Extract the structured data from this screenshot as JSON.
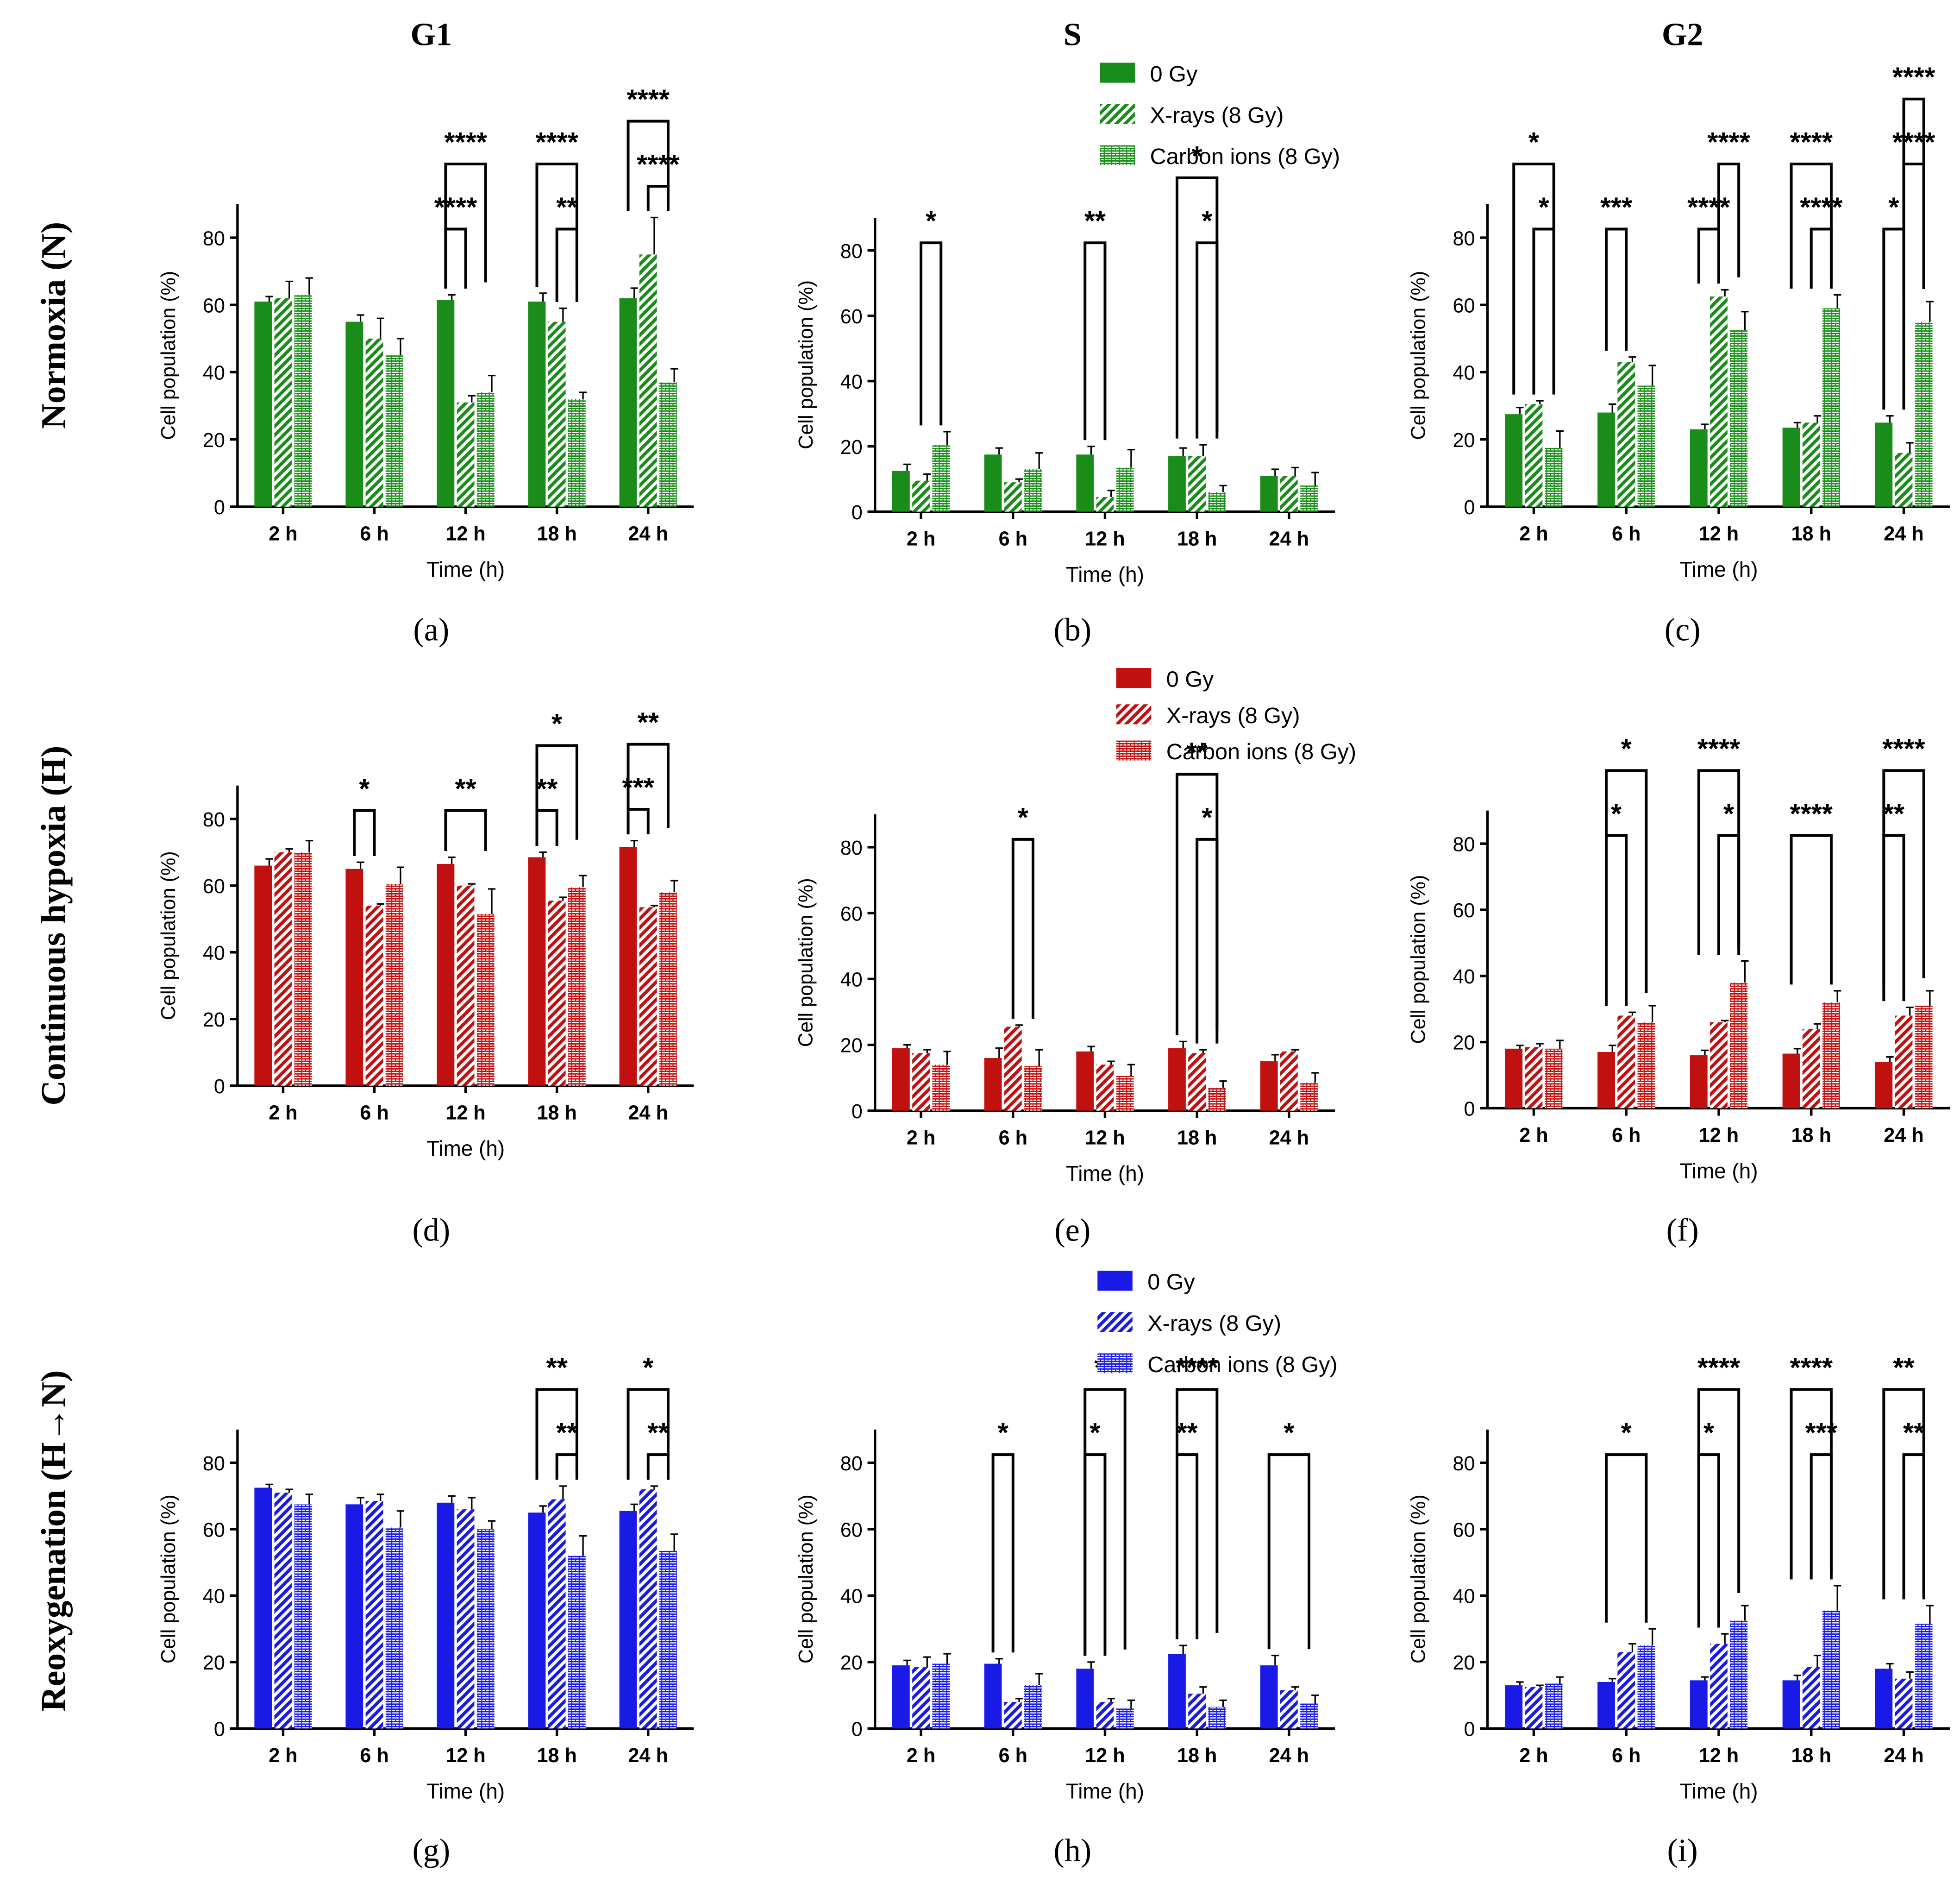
{
  "row_labels": [
    "Normoxia (N)",
    "Continuous hypoxia (H)",
    "Reoxygenation (H→N)"
  ],
  "column_titles": [
    "G1",
    "S",
    "G2"
  ],
  "panel_letters": [
    "(a)",
    "(b)",
    "(c)",
    "(d)",
    "(e)",
    "(f)",
    "(g)",
    "(h)",
    "(i)"
  ],
  "xlabel": "Time (h)",
  "ylabel": "Cell population (%)",
  "categories": [
    "2 h",
    "6 h",
    "12 h",
    "18 h",
    "24 h"
  ],
  "series_names": [
    "0 Gy",
    "X-rays (8 Gy)",
    "Carbon ions (8 Gy)"
  ],
  "colors": {
    "N": "#1a8c1a",
    "H": "#c01010",
    "R": "#1a1ae6"
  },
  "chart_data": [
    {
      "id": "a",
      "type": "bar",
      "row": "N",
      "phase": "G1",
      "title": "G1",
      "ylim": [
        0,
        90
      ],
      "yticks": [
        0,
        20,
        40,
        60,
        80
      ],
      "series": [
        {
          "name": "0 Gy",
          "values": [
            61,
            55,
            61.5,
            61,
            62
          ],
          "err": [
            1.5,
            2,
            1.5,
            2.5,
            3
          ]
        },
        {
          "name": "X-rays (8 Gy)",
          "values": [
            62,
            50,
            31,
            55,
            75
          ],
          "err": [
            5,
            6,
            2,
            4,
            11
          ]
        },
        {
          "name": "Carbon ions (8 Gy)",
          "values": [
            63,
            45,
            34,
            32,
            37
          ],
          "err": [
            5,
            5,
            5,
            2,
            4
          ]
        }
      ],
      "significance": [
        {
          "cat": 2,
          "a": 0,
          "b": 2,
          "label": "****",
          "level": 2
        },
        {
          "cat": 2,
          "a": 0,
          "b": 1,
          "label": "****",
          "level": 1
        },
        {
          "cat": 3,
          "a": 0,
          "b": 2,
          "label": "****",
          "level": 2
        },
        {
          "cat": 3,
          "a": 1,
          "b": 2,
          "label": "**",
          "level": 1
        },
        {
          "cat": 4,
          "a": 0,
          "b": 2,
          "label": "****",
          "level": 2
        },
        {
          "cat": 4,
          "a": 1,
          "b": 2,
          "label": "****",
          "level": 1
        }
      ]
    },
    {
      "id": "b",
      "type": "bar",
      "row": "N",
      "phase": "S",
      "title": "S",
      "ylim": [
        0,
        90
      ],
      "yticks": [
        0,
        20,
        40,
        60,
        80
      ],
      "series": [
        {
          "name": "0 Gy",
          "values": [
            12.5,
            17.5,
            17.5,
            17,
            11
          ],
          "err": [
            2,
            2,
            2.5,
            2.5,
            2
          ]
        },
        {
          "name": "X-rays (8 Gy)",
          "values": [
            9.5,
            9,
            4.5,
            17,
            11
          ],
          "err": [
            2,
            1,
            2,
            3.5,
            2.5
          ]
        },
        {
          "name": "Carbon ions (8 Gy)",
          "values": [
            20.5,
            13,
            13.5,
            6,
            8
          ],
          "err": [
            4,
            5,
            5.5,
            2,
            4
          ]
        }
      ],
      "significance": [
        {
          "cat": 0,
          "a": 1,
          "b": 2,
          "label": "*",
          "level": 1
        },
        {
          "cat": 2,
          "a": 0,
          "b": 1,
          "label": "**",
          "level": 1
        },
        {
          "cat": 3,
          "a": 0,
          "b": 2,
          "label": "*",
          "level": 2
        },
        {
          "cat": 3,
          "a": 1,
          "b": 2,
          "label": "*",
          "level": 1
        }
      ]
    },
    {
      "id": "c",
      "type": "bar",
      "row": "N",
      "phase": "G2",
      "title": "G2",
      "ylim": [
        0,
        90
      ],
      "yticks": [
        0,
        20,
        40,
        60,
        80
      ],
      "series": [
        {
          "name": "0 Gy",
          "values": [
            27.5,
            28,
            23,
            23.5,
            25
          ],
          "err": [
            2,
            2.5,
            1.5,
            1.5,
            2
          ]
        },
        {
          "name": "X-rays (8 Gy)",
          "values": [
            30.5,
            43,
            62.5,
            25,
            16
          ],
          "err": [
            1,
            1.5,
            2,
            2,
            3
          ]
        },
        {
          "name": "Carbon ions (8 Gy)",
          "values": [
            17.5,
            36,
            52.5,
            59,
            55
          ],
          "err": [
            5,
            6,
            5.5,
            4,
            6
          ]
        }
      ],
      "significance": [
        {
          "cat": 0,
          "a": 0,
          "b": 2,
          "label": "*",
          "level": 2
        },
        {
          "cat": 0,
          "a": 1,
          "b": 2,
          "label": "*",
          "level": 1
        },
        {
          "cat": 1,
          "a": 0,
          "b": 1,
          "label": "***",
          "level": 1
        },
        {
          "cat": 2,
          "a": 1,
          "b": 2,
          "label": "****",
          "level": 2
        },
        {
          "cat": 2,
          "a": 0,
          "b": 1,
          "label": "****",
          "level": 1
        },
        {
          "cat": 3,
          "a": 0,
          "b": 2,
          "label": "****",
          "level": 2
        },
        {
          "cat": 3,
          "a": 1,
          "b": 2,
          "label": "****",
          "level": 1
        },
        {
          "cat": 4,
          "a": 1,
          "b": 2,
          "label": "****",
          "level": 3
        },
        {
          "cat": 4,
          "a": 1,
          "b": 2,
          "label": "****",
          "level": 2
        },
        {
          "cat": 4,
          "a": 0,
          "b": 1,
          "label": "*",
          "level": 1
        }
      ]
    },
    {
      "id": "d",
      "type": "bar",
      "row": "H",
      "phase": "G1",
      "title": "",
      "ylim": [
        0,
        90
      ],
      "yticks": [
        0,
        20,
        40,
        60,
        80
      ],
      "series": [
        {
          "name": "0 Gy",
          "values": [
            66,
            65,
            66.5,
            68.5,
            71.5
          ],
          "err": [
            2,
            2,
            2,
            1.5,
            2
          ]
        },
        {
          "name": "X-rays (8 Gy)",
          "values": [
            70,
            54,
            60,
            55.5,
            53.5
          ],
          "err": [
            1,
            0.5,
            0.5,
            1,
            0.5
          ]
        },
        {
          "name": "Carbon ions (8 Gy)",
          "values": [
            70,
            60.5,
            51.5,
            59.5,
            58
          ],
          "err": [
            3.5,
            5,
            7.5,
            3.5,
            3.5
          ]
        }
      ],
      "significance": [
        {
          "cat": 1,
          "a": 0,
          "b": 1,
          "label": "*",
          "level": 1
        },
        {
          "cat": 2,
          "a": 0,
          "b": 2,
          "label": "**",
          "level": 1
        },
        {
          "cat": 3,
          "a": 0,
          "b": 2,
          "label": "*",
          "level": 2
        },
        {
          "cat": 3,
          "a": 0,
          "b": 1,
          "label": "**",
          "level": 1
        },
        {
          "cat": 4,
          "a": 0,
          "b": 2,
          "label": "**",
          "level": 2
        },
        {
          "cat": 4,
          "a": 0,
          "b": 1,
          "label": "***",
          "level": 1
        }
      ]
    },
    {
      "id": "e",
      "type": "bar",
      "row": "H",
      "phase": "S",
      "title": "",
      "ylim": [
        0,
        90
      ],
      "yticks": [
        0,
        20,
        40,
        60,
        80
      ],
      "series": [
        {
          "name": "0 Gy",
          "values": [
            19,
            16,
            18,
            19,
            15
          ],
          "err": [
            1,
            3,
            1.5,
            2,
            2
          ]
        },
        {
          "name": "X-rays (8 Gy)",
          "values": [
            17.5,
            25.5,
            14,
            17.5,
            18
          ],
          "err": [
            1,
            0.5,
            1,
            1,
            0.5
          ]
        },
        {
          "name": "Carbon ions (8 Gy)",
          "values": [
            14,
            13.5,
            10.5,
            7,
            8.5
          ],
          "err": [
            4,
            5,
            3.5,
            2,
            3
          ]
        }
      ],
      "significance": [
        {
          "cat": 1,
          "a": 1,
          "b": 2,
          "label": "*",
          "level": 1
        },
        {
          "cat": 3,
          "a": 0,
          "b": 2,
          "label": "**",
          "level": 2
        },
        {
          "cat": 3,
          "a": 1,
          "b": 2,
          "label": "*",
          "level": 1
        }
      ]
    },
    {
      "id": "f",
      "type": "bar",
      "row": "H",
      "phase": "G2",
      "title": "",
      "ylim": [
        0,
        90
      ],
      "yticks": [
        0,
        20,
        40,
        60,
        80
      ],
      "series": [
        {
          "name": "0 Gy",
          "values": [
            18,
            17,
            16,
            16.5,
            14
          ],
          "err": [
            1,
            2,
            1.5,
            1.5,
            1.5
          ]
        },
        {
          "name": "X-rays (8 Gy)",
          "values": [
            18.5,
            28,
            26,
            24,
            28
          ],
          "err": [
            1,
            1,
            0.5,
            1.5,
            2.5
          ]
        },
        {
          "name": "Carbon ions (8 Gy)",
          "values": [
            18,
            26,
            38,
            32,
            31
          ],
          "err": [
            2.5,
            5,
            6.5,
            3.5,
            4.5
          ]
        }
      ],
      "significance": [
        {
          "cat": 1,
          "a": 0,
          "b": 2,
          "label": "*",
          "level": 2
        },
        {
          "cat": 1,
          "a": 0,
          "b": 1,
          "label": "*",
          "level": 1
        },
        {
          "cat": 2,
          "a": 0,
          "b": 2,
          "label": "****",
          "level": 2
        },
        {
          "cat": 2,
          "a": 1,
          "b": 2,
          "label": "*",
          "level": 1
        },
        {
          "cat": 3,
          "a": 0,
          "b": 2,
          "label": "****",
          "level": 1
        },
        {
          "cat": 4,
          "a": 0,
          "b": 2,
          "label": "****",
          "level": 2
        },
        {
          "cat": 4,
          "a": 0,
          "b": 1,
          "label": "**",
          "level": 1
        }
      ]
    },
    {
      "id": "g",
      "type": "bar",
      "row": "R",
      "phase": "G1",
      "title": "",
      "ylim": [
        0,
        90
      ],
      "yticks": [
        0,
        20,
        40,
        60,
        80
      ],
      "series": [
        {
          "name": "0 Gy",
          "values": [
            72.5,
            67.5,
            68,
            65,
            65.5
          ],
          "err": [
            1,
            2,
            2,
            2,
            2
          ]
        },
        {
          "name": "X-rays (8 Gy)",
          "values": [
            71,
            68.5,
            66,
            69,
            72
          ],
          "err": [
            1,
            2,
            3.5,
            4,
            1
          ]
        },
        {
          "name": "Carbon ions (8 Gy)",
          "values": [
            67.5,
            60.5,
            60,
            52,
            53.5
          ],
          "err": [
            3,
            5,
            2.5,
            6,
            5
          ]
        }
      ],
      "significance": [
        {
          "cat": 3,
          "a": 0,
          "b": 2,
          "label": "**",
          "level": 2
        },
        {
          "cat": 3,
          "a": 1,
          "b": 2,
          "label": "**",
          "level": 1
        },
        {
          "cat": 4,
          "a": 0,
          "b": 2,
          "label": "*",
          "level": 2
        },
        {
          "cat": 4,
          "a": 1,
          "b": 2,
          "label": "**",
          "level": 1
        }
      ]
    },
    {
      "id": "h",
      "type": "bar",
      "row": "R",
      "phase": "S",
      "title": "",
      "ylim": [
        0,
        90
      ],
      "yticks": [
        0,
        20,
        40,
        60,
        80
      ],
      "series": [
        {
          "name": "0 Gy",
          "values": [
            19,
            19.5,
            18,
            22.5,
            19
          ],
          "err": [
            1.5,
            1.5,
            2,
            2.5,
            3
          ]
        },
        {
          "name": "X-rays (8 Gy)",
          "values": [
            18.5,
            8,
            8,
            10.5,
            11.5
          ],
          "err": [
            3,
            1,
            1,
            2,
            1
          ]
        },
        {
          "name": "Carbon ions (8 Gy)",
          "values": [
            19.5,
            13,
            6,
            6.5,
            7.5
          ],
          "err": [
            3,
            3.5,
            2.5,
            2,
            2.5
          ]
        }
      ],
      "significance": [
        {
          "cat": 1,
          "a": 0,
          "b": 1,
          "label": "*",
          "level": 1
        },
        {
          "cat": 2,
          "a": 0,
          "b": 2,
          "label": "**",
          "level": 2
        },
        {
          "cat": 2,
          "a": 0,
          "b": 1,
          "label": "*",
          "level": 1
        },
        {
          "cat": 3,
          "a": 0,
          "b": 2,
          "label": "****",
          "level": 2
        },
        {
          "cat": 3,
          "a": 0,
          "b": 1,
          "label": "**",
          "level": 1
        },
        {
          "cat": 4,
          "a": 0,
          "b": 2,
          "label": "*",
          "level": 1
        }
      ]
    },
    {
      "id": "i",
      "type": "bar",
      "row": "R",
      "phase": "G2",
      "title": "",
      "ylim": [
        0,
        90
      ],
      "yticks": [
        0,
        20,
        40,
        60,
        80
      ],
      "series": [
        {
          "name": "0 Gy",
          "values": [
            13,
            14,
            14.5,
            14.5,
            18
          ],
          "err": [
            1,
            1,
            1,
            1.5,
            1.5
          ]
        },
        {
          "name": "X-rays (8 Gy)",
          "values": [
            12.5,
            23,
            25.5,
            18.5,
            15
          ],
          "err": [
            0.5,
            2.5,
            3,
            3.5,
            2
          ]
        },
        {
          "name": "Carbon ions (8 Gy)",
          "values": [
            13.5,
            25,
            32.5,
            35.5,
            31.5
          ],
          "err": [
            2,
            5,
            4.5,
            7.5,
            5.5
          ]
        }
      ],
      "significance": [
        {
          "cat": 1,
          "a": 0,
          "b": 2,
          "label": "*",
          "level": 1
        },
        {
          "cat": 2,
          "a": 0,
          "b": 2,
          "label": "****",
          "level": 2
        },
        {
          "cat": 2,
          "a": 0,
          "b": 1,
          "label": "*",
          "level": 1
        },
        {
          "cat": 3,
          "a": 0,
          "b": 2,
          "label": "****",
          "level": 2
        },
        {
          "cat": 3,
          "a": 1,
          "b": 2,
          "label": "***",
          "level": 1
        },
        {
          "cat": 4,
          "a": 0,
          "b": 2,
          "label": "**",
          "level": 2
        },
        {
          "cat": 4,
          "a": 1,
          "b": 2,
          "label": "**",
          "level": 1
        }
      ]
    }
  ]
}
